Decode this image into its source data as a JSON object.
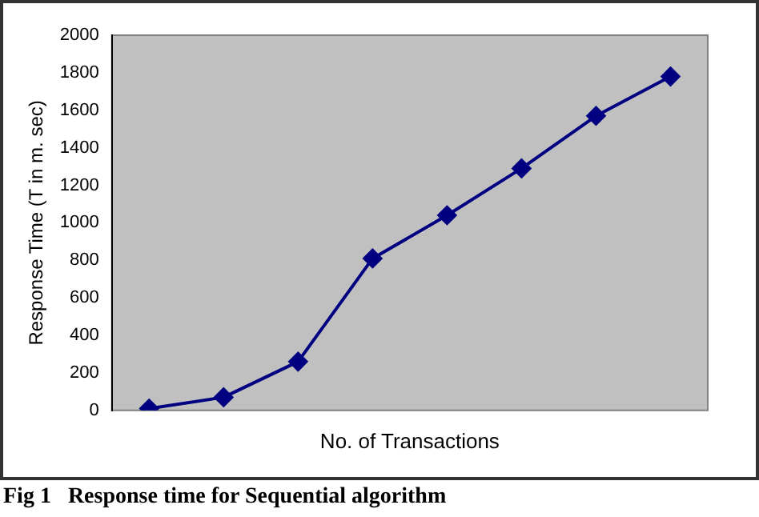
{
  "chart_data": {
    "type": "line",
    "ylabel": "Response Time (T in m. sec)",
    "xlabel": "No. of Transactions",
    "categories": [
      null,
      null,
      null,
      null,
      null,
      null,
      null,
      null
    ],
    "series": [
      {
        "color": "#000080",
        "values": [
          10,
          70,
          260,
          810,
          1040,
          1290,
          1570,
          1780
        ]
      }
    ],
    "ylim": [
      0,
      2000
    ],
    "yticks": [
      0,
      200,
      400,
      600,
      800,
      1000,
      1200,
      1400,
      1600,
      1800,
      2000
    ],
    "grid": false,
    "legend": false,
    "marker": "diamond",
    "line_style": "solid",
    "tick_labels": "y",
    "annotations": [
      "Fig 1   Response time for Sequential algorithm"
    ]
  }
}
